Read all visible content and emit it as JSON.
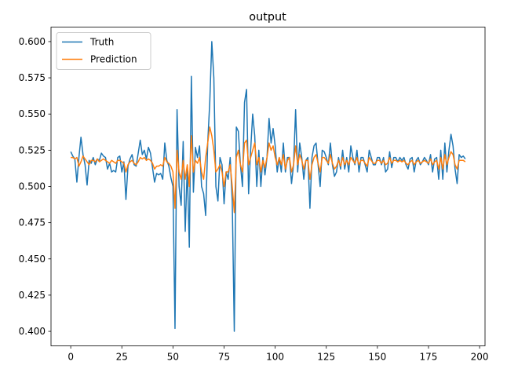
{
  "chart_data": {
    "type": "line",
    "title": "output",
    "x": [
      0,
      1,
      2,
      3,
      4,
      5,
      6,
      7,
      8,
      9,
      10,
      11,
      12,
      13,
      14,
      15,
      16,
      17,
      18,
      19,
      20,
      21,
      22,
      23,
      24,
      25,
      26,
      27,
      28,
      29,
      30,
      31,
      32,
      33,
      34,
      35,
      36,
      37,
      38,
      39,
      40,
      41,
      42,
      43,
      44,
      45,
      46,
      47,
      48,
      49,
      50,
      51,
      52,
      53,
      54,
      55,
      56,
      57,
      58,
      59,
      60,
      61,
      62,
      63,
      64,
      65,
      66,
      67,
      68,
      69,
      70,
      71,
      72,
      73,
      74,
      75,
      76,
      77,
      78,
      79,
      80,
      81,
      82,
      83,
      84,
      85,
      86,
      87,
      88,
      89,
      90,
      91,
      92,
      93,
      94,
      95,
      96,
      97,
      98,
      99,
      100,
      101,
      102,
      103,
      104,
      105,
      106,
      107,
      108,
      109,
      110,
      111,
      112,
      113,
      114,
      115,
      116,
      117,
      118,
      119,
      120,
      121,
      122,
      123,
      124,
      125,
      126,
      127,
      128,
      129,
      130,
      131,
      132,
      133,
      134,
      135,
      136,
      137,
      138,
      139,
      140,
      141,
      142,
      143,
      144,
      145,
      146,
      147,
      148,
      149,
      150,
      151,
      152,
      153,
      154,
      155,
      156,
      157,
      158,
      159,
      160,
      161,
      162,
      163,
      164,
      165,
      166,
      167,
      168,
      169,
      170,
      171,
      172,
      173,
      174,
      175,
      176,
      177,
      178,
      179,
      180,
      181,
      182,
      183,
      184,
      185,
      186,
      187,
      188,
      189,
      190,
      191,
      192,
      193
    ],
    "series": [
      {
        "name": "Truth",
        "color": "#1f77b4",
        "values": [
          0.524,
          0.521,
          0.519,
          0.503,
          0.52,
          0.534,
          0.522,
          0.515,
          0.501,
          0.518,
          0.516,
          0.52,
          0.515,
          0.519,
          0.518,
          0.523,
          0.521,
          0.52,
          0.512,
          0.516,
          0.51,
          0.511,
          0.51,
          0.52,
          0.521,
          0.51,
          0.517,
          0.491,
          0.514,
          0.519,
          0.522,
          0.515,
          0.514,
          0.523,
          0.532,
          0.522,
          0.525,
          0.519,
          0.527,
          0.523,
          0.513,
          0.503,
          0.509,
          0.508,
          0.509,
          0.505,
          0.53,
          0.518,
          0.514,
          0.506,
          0.5,
          0.402,
          0.553,
          0.5,
          0.487,
          0.531,
          0.469,
          0.514,
          0.458,
          0.576,
          0.496,
          0.527,
          0.52,
          0.528,
          0.5,
          0.495,
          0.48,
          0.53,
          0.558,
          0.6,
          0.575,
          0.5,
          0.49,
          0.52,
          0.515,
          0.488,
          0.51,
          0.505,
          0.52,
          0.49,
          0.4,
          0.541,
          0.538,
          0.515,
          0.5,
          0.558,
          0.567,
          0.495,
          0.525,
          0.55,
          0.535,
          0.5,
          0.525,
          0.5,
          0.52,
          0.508,
          0.52,
          0.547,
          0.53,
          0.54,
          0.528,
          0.51,
          0.52,
          0.51,
          0.53,
          0.51,
          0.52,
          0.52,
          0.502,
          0.515,
          0.553,
          0.51,
          0.53,
          0.52,
          0.505,
          0.518,
          0.52,
          0.485,
          0.52,
          0.528,
          0.53,
          0.515,
          0.5,
          0.525,
          0.524,
          0.52,
          0.515,
          0.53,
          0.515,
          0.507,
          0.51,
          0.52,
          0.512,
          0.525,
          0.512,
          0.52,
          0.51,
          0.528,
          0.52,
          0.515,
          0.525,
          0.51,
          0.52,
          0.52,
          0.515,
          0.51,
          0.525,
          0.52,
          0.515,
          0.515,
          0.52,
          0.52,
          0.515,
          0.52,
          0.51,
          0.512,
          0.524,
          0.513,
          0.52,
          0.52,
          0.517,
          0.52,
          0.518,
          0.52,
          0.515,
          0.512,
          0.519,
          0.52,
          0.51,
          0.518,
          0.52,
          0.515,
          0.517,
          0.52,
          0.518,
          0.515,
          0.522,
          0.51,
          0.519,
          0.52,
          0.505,
          0.525,
          0.505,
          0.53,
          0.51,
          0.525,
          0.536,
          0.528,
          0.512,
          0.502,
          0.522,
          0.52,
          0.521,
          0.519
        ]
      },
      {
        "name": "Prediction",
        "color": "#ff7f0e",
        "values": [
          0.52,
          0.52,
          0.519,
          0.52,
          0.514,
          0.517,
          0.521,
          0.519,
          0.517,
          0.515,
          0.518,
          0.518,
          0.517,
          0.519,
          0.517,
          0.518,
          0.519,
          0.518,
          0.517,
          0.516,
          0.518,
          0.517,
          0.516,
          0.518,
          0.518,
          0.517,
          0.516,
          0.51,
          0.515,
          0.517,
          0.518,
          0.516,
          0.515,
          0.517,
          0.52,
          0.519,
          0.52,
          0.518,
          0.519,
          0.518,
          0.516,
          0.512,
          0.514,
          0.514,
          0.515,
          0.514,
          0.52,
          0.517,
          0.516,
          0.514,
          0.51,
          0.485,
          0.525,
          0.51,
          0.505,
          0.518,
          0.505,
          0.515,
          0.5,
          0.535,
          0.51,
          0.518,
          0.516,
          0.52,
          0.51,
          0.505,
          0.52,
          0.53,
          0.541,
          0.535,
          0.525,
          0.51,
          0.512,
          0.515,
          0.51,
          0.5,
          0.51,
          0.51,
          0.515,
          0.5,
          0.482,
          0.52,
          0.525,
          0.515,
          0.51,
          0.53,
          0.532,
          0.515,
          0.52,
          0.525,
          0.53,
          0.515,
          0.52,
          0.51,
          0.518,
          0.513,
          0.52,
          0.53,
          0.525,
          0.528,
          0.52,
          0.515,
          0.52,
          0.515,
          0.522,
          0.512,
          0.518,
          0.52,
          0.51,
          0.515,
          0.528,
          0.515,
          0.522,
          0.518,
          0.512,
          0.518,
          0.518,
          0.505,
          0.515,
          0.52,
          0.522,
          0.516,
          0.51,
          0.52,
          0.52,
          0.518,
          0.516,
          0.522,
          0.516,
          0.512,
          0.514,
          0.518,
          0.514,
          0.52,
          0.515,
          0.518,
          0.515,
          0.52,
          0.518,
          0.516,
          0.52,
          0.515,
          0.518,
          0.518,
          0.516,
          0.514,
          0.52,
          0.518,
          0.516,
          0.516,
          0.518,
          0.518,
          0.516,
          0.518,
          0.515,
          0.516,
          0.52,
          0.516,
          0.518,
          0.518,
          0.517,
          0.518,
          0.517,
          0.518,
          0.516,
          0.515,
          0.517,
          0.518,
          0.515,
          0.517,
          0.518,
          0.516,
          0.517,
          0.518,
          0.517,
          0.516,
          0.519,
          0.515,
          0.517,
          0.518,
          0.512,
          0.52,
          0.512,
          0.522,
          0.515,
          0.52,
          0.524,
          0.522,
          0.515,
          0.512,
          0.518,
          0.518,
          0.518,
          0.517
        ]
      }
    ],
    "xlim": [
      -9.65,
      202.65
    ],
    "xticks": [
      0,
      25,
      50,
      75,
      100,
      125,
      150,
      175,
      200
    ],
    "ylim": [
      0.39,
      0.61
    ],
    "yticks": [
      {
        "value": 0.4,
        "label": "0.400"
      },
      {
        "value": 0.425,
        "label": "0.425"
      },
      {
        "value": 0.45,
        "label": "0.450"
      },
      {
        "value": 0.475,
        "label": "0.475"
      },
      {
        "value": 0.5,
        "label": "0.500"
      },
      {
        "value": 0.525,
        "label": "0.525"
      },
      {
        "value": 0.55,
        "label": "0.550"
      },
      {
        "value": 0.575,
        "label": "0.575"
      },
      {
        "value": 0.6,
        "label": "0.600"
      }
    ],
    "legend": "upper left",
    "grid": false
  }
}
